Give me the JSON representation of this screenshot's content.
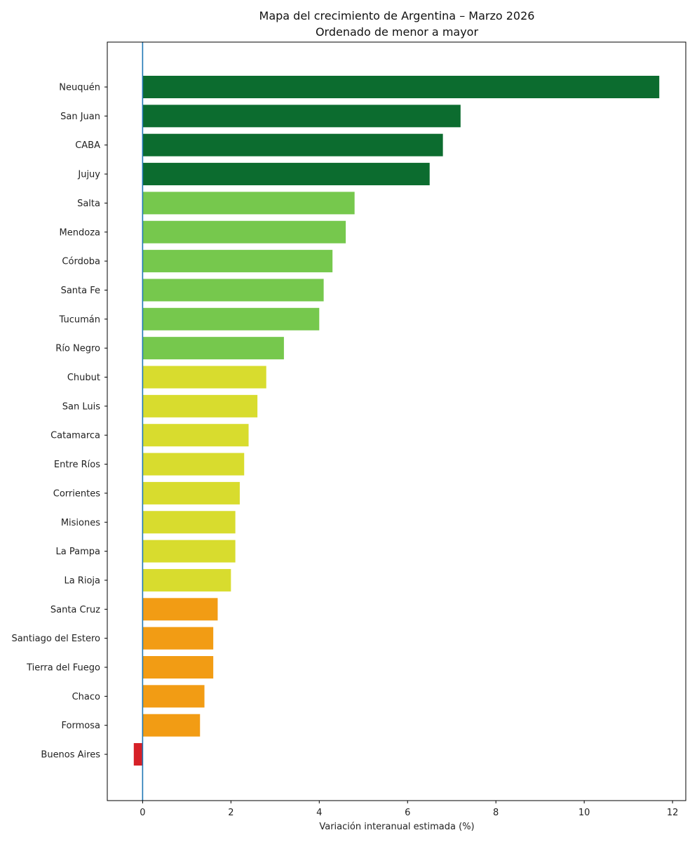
{
  "chart_data": {
    "type": "bar",
    "orientation": "horizontal",
    "title": "Mapa del crecimiento de Argentina – Marzo 2026",
    "subtitle": "Ordenado de menor a mayor",
    "xlabel": "Variación interanual estimada (%)",
    "ylabel": "",
    "xlim": [
      -0.8,
      12.3
    ],
    "xticks": [
      0,
      2,
      4,
      6,
      8,
      10,
      12
    ],
    "grid": false,
    "reference_line": {
      "x": 0,
      "color": "#1f77b4"
    },
    "colors": {
      "dark_green": "#0c6c2f",
      "light_green": "#76c84d",
      "yellow": "#d8dc2e",
      "orange": "#f29c14",
      "red": "#d62027"
    },
    "categories": [
      "Neuquén",
      "San Juan",
      "CABA",
      "Jujuy",
      "Salta",
      "Mendoza",
      "Córdoba",
      "Santa Fe",
      "Tucumán",
      "Río Negro",
      "Chubut",
      "San Luis",
      "Catamarca",
      "Entre Ríos",
      "Corrientes",
      "Misiones",
      "La Pampa",
      "La Rioja",
      "Santa Cruz",
      "Santiago del Estero",
      "Tierra del Fuego",
      "Chaco",
      "Formosa",
      "Buenos Aires"
    ],
    "values": [
      11.7,
      7.2,
      6.8,
      6.5,
      4.8,
      4.6,
      4.3,
      4.1,
      4.0,
      3.2,
      2.8,
      2.6,
      2.4,
      2.3,
      2.2,
      2.1,
      2.1,
      2.0,
      1.7,
      1.6,
      1.6,
      1.4,
      1.3,
      -0.2
    ],
    "bar_colors": [
      "#0c6c2f",
      "#0c6c2f",
      "#0c6c2f",
      "#0c6c2f",
      "#76c84d",
      "#76c84d",
      "#76c84d",
      "#76c84d",
      "#76c84d",
      "#76c84d",
      "#d8dc2e",
      "#d8dc2e",
      "#d8dc2e",
      "#d8dc2e",
      "#d8dc2e",
      "#d8dc2e",
      "#d8dc2e",
      "#d8dc2e",
      "#f29c14",
      "#f29c14",
      "#f29c14",
      "#f29c14",
      "#f29c14",
      "#d62027"
    ]
  }
}
